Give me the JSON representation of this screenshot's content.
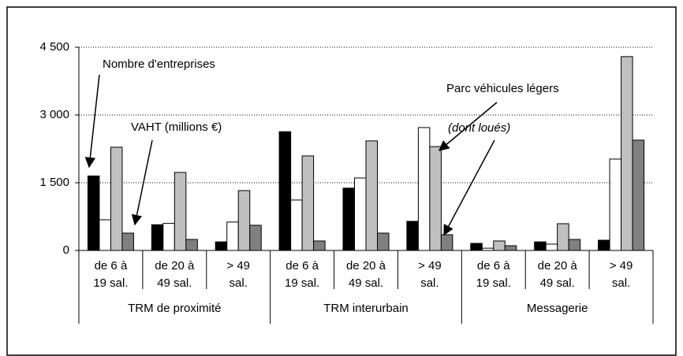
{
  "chart_data": {
    "type": "bar",
    "categories": [
      [
        "de 6 à",
        "19 sal."
      ],
      [
        "de 20 à",
        "49 sal."
      ],
      [
        "> 49",
        "sal."
      ],
      [
        "de 6 à",
        "19 sal."
      ],
      [
        "de 20 à",
        "49 sal."
      ],
      [
        "> 49",
        "sal."
      ],
      [
        "de 6 à",
        "19 sal."
      ],
      [
        "de 20 à",
        "49 sal."
      ],
      [
        "> 49",
        "sal."
      ]
    ],
    "groups": [
      "TRM de proximité",
      "TRM interurbain",
      "Messagerie"
    ],
    "series": [
      {
        "name": "Nombre d'entreprises",
        "color": "#000000",
        "values": [
          1650,
          570,
          190,
          2630,
          1380,
          645,
          157,
          190,
          227
        ]
      },
      {
        "name": "VAHT (millions €)",
        "color": "#ffffff",
        "values": [
          680,
          600,
          630,
          1117,
          1605,
          2722,
          50,
          140,
          2024
        ]
      },
      {
        "name": "Parc véhicules légers",
        "color": "#c0c0c0",
        "values": [
          2286,
          1728,
          1326,
          2094,
          2426,
          2300,
          210,
          593,
          4293
        ]
      },
      {
        "name": "(dont loués)",
        "color": "#808080",
        "values": [
          384,
          244,
          558,
          210,
          384,
          349,
          105,
          244,
          2443
        ]
      }
    ],
    "ylim": [
      0,
      4500
    ],
    "yticks": [
      {
        "value": 0,
        "label": "0"
      },
      {
        "value": 1500,
        "label": "1 500"
      },
      {
        "value": 3000,
        "label": "3 000"
      },
      {
        "value": 4500,
        "label": "4 500"
      }
    ],
    "grid": true
  }
}
